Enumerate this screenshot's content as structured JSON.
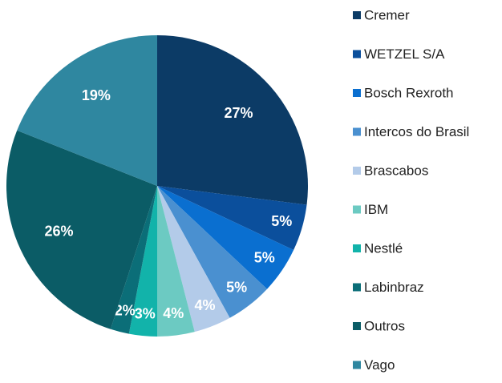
{
  "chart_data": {
    "type": "pie",
    "categories": [
      "Cremer",
      "WETZEL S/A",
      "Bosch Rexroth",
      "Intercos do Brasil",
      "Brascabos",
      "IBM",
      "Nestlé",
      "Labinbraz",
      "Outros",
      "Vago"
    ],
    "values": [
      27,
      5,
      5,
      5,
      4,
      4,
      3,
      2,
      26,
      19
    ],
    "value_labels": [
      "27%",
      "5%",
      "5%",
      "5%",
      "4%",
      "4%",
      "3%",
      "2%",
      "26%",
      "19%"
    ],
    "colors": [
      "#0c3b66",
      "#0b4f9c",
      "#0a6fd0",
      "#4a90d0",
      "#b3cbe9",
      "#6ccac2",
      "#12b3aa",
      "#0b6e78",
      "#0b5c66",
      "#2f87a0"
    ],
    "legend": "right"
  }
}
